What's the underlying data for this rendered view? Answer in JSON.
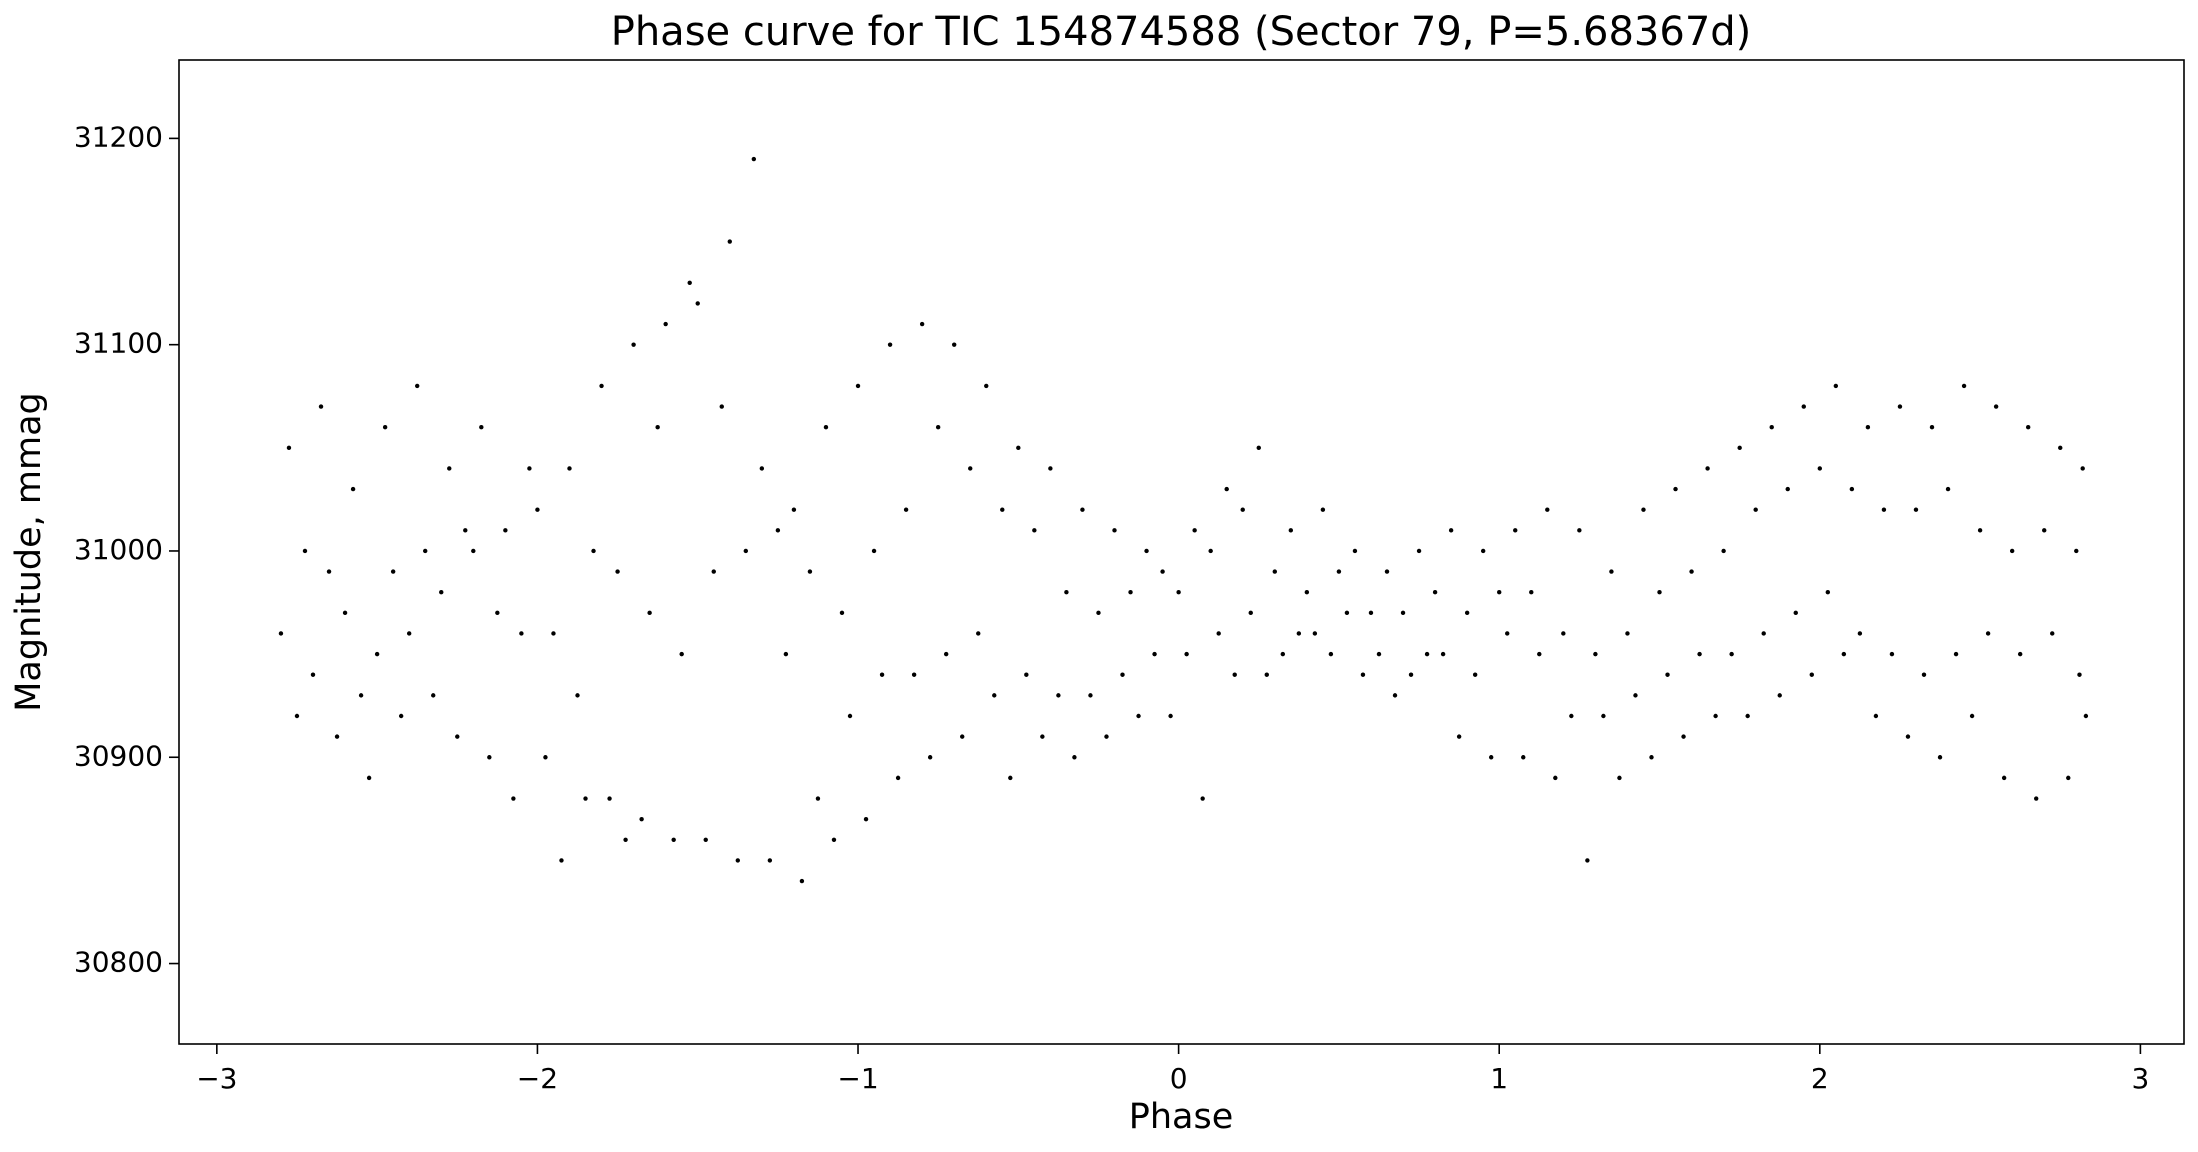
{
  "chart_data": {
    "type": "scatter",
    "title": "Phase curve for TIC 154874588 (Sector 79, P=5.68367d)",
    "x_label": "Phase",
    "y_label": "Magnitude, mmag",
    "xlim": [
      -3.118,
      3.136
    ],
    "ylim": [
      30761,
      31238
    ],
    "xticks": [
      {
        "value": -3,
        "label": "−3"
      },
      {
        "value": -2,
        "label": "−2"
      },
      {
        "value": -1,
        "label": "−1"
      },
      0,
      1,
      2,
      3
    ],
    "yticks": [
      30800,
      30900,
      31000,
      31100,
      31200
    ],
    "color": "#000000",
    "x": [
      -2.8,
      -2.775,
      -2.75,
      -2.725,
      -2.7,
      -2.675,
      -2.65,
      -2.625,
      -2.6,
      -2.575,
      -2.55,
      -2.525,
      -2.5,
      -2.475,
      -2.45,
      -2.425,
      -2.4,
      -2.375,
      -2.35,
      -2.325,
      -2.3,
      -2.275,
      -2.25,
      -2.225,
      -2.2,
      -2.175,
      -2.15,
      -2.125,
      -2.1,
      -2.075,
      -2.05,
      -2.025,
      -2.0,
      -1.975,
      -1.95,
      -1.925,
      -1.9,
      -1.875,
      -1.85,
      -1.825,
      -1.8,
      -1.775,
      -1.75,
      -1.725,
      -1.7,
      -1.675,
      -1.65,
      -1.625,
      -1.6,
      -1.575,
      -1.55,
      -1.525,
      -1.5,
      -1.475,
      -1.45,
      -1.425,
      -1.4,
      -1.375,
      -1.35,
      -1.325,
      -1.3,
      -1.275,
      -1.25,
      -1.225,
      -1.2,
      -1.175,
      -1.15,
      -1.125,
      -1.1,
      -1.075,
      -1.05,
      -1.025,
      -1.0,
      -0.975,
      -0.95,
      -0.925,
      -0.9,
      -0.875,
      -0.85,
      -0.825,
      -0.8,
      -0.775,
      -0.75,
      -0.725,
      -0.7,
      -0.675,
      -0.65,
      -0.625,
      -0.6,
      -0.575,
      -0.55,
      -0.525,
      -0.5,
      -0.475,
      -0.45,
      -0.425,
      -0.4,
      -0.375,
      -0.35,
      -0.325,
      -0.3,
      -0.275,
      -0.25,
      -0.225,
      -0.2,
      -0.175,
      -0.15,
      -0.125,
      -0.1,
      -0.075,
      -0.05,
      -0.025,
      0.0,
      0.025,
      0.05,
      0.075,
      0.1,
      0.125,
      0.15,
      0.175,
      0.2,
      0.225,
      0.25,
      0.275,
      0.3,
      0.325,
      0.35,
      0.375,
      0.4,
      0.425,
      0.45,
      0.475,
      0.5,
      0.525,
      0.55,
      0.575,
      0.6,
      0.625,
      0.65,
      0.675,
      0.7,
      0.725,
      0.75,
      0.775,
      0.8,
      0.825,
      0.85,
      0.875,
      0.9,
      0.925,
      0.95,
      0.975,
      1.0,
      1.025,
      1.05,
      1.075,
      1.1,
      1.125,
      1.15,
      1.175,
      1.2,
      1.225,
      1.25,
      1.275,
      1.3,
      1.325,
      1.35,
      1.375,
      1.4,
      1.425,
      1.45,
      1.475,
      1.5,
      1.525,
      1.55,
      1.575,
      1.6,
      1.625,
      1.65,
      1.675,
      1.7,
      1.725,
      1.75,
      1.775,
      1.8,
      1.825,
      1.85,
      1.875,
      1.9,
      1.925,
      1.95,
      1.975,
      2.0,
      2.025,
      2.05,
      2.075,
      2.1,
      2.125,
      2.15,
      2.175,
      2.2,
      2.225,
      2.25,
      2.275,
      2.3,
      2.325,
      2.35,
      2.375,
      2.4,
      2.425,
      2.45,
      2.475,
      2.5,
      2.525,
      2.55,
      2.575,
      2.6,
      2.625,
      2.65,
      2.675,
      2.7,
      2.725,
      2.75,
      2.775,
      2.8,
      2.81,
      2.82,
      2.83
    ],
    "y": [
      30960,
      31050,
      30920,
      31000,
      30940,
      31070,
      30990,
      30910,
      30970,
      31030,
      30930,
      30890,
      30950,
      31060,
      30990,
      30920,
      30960,
      31080,
      31000,
      30930,
      30980,
      31040,
      30910,
      31010,
      31000,
      31060,
      30900,
      30970,
      31010,
      30880,
      30960,
      31040,
      31020,
      30900,
      30960,
      30850,
      31040,
      30930,
      30880,
      31000,
      31080,
      30880,
      30990,
      30860,
      31100,
      30870,
      30970,
      31060,
      31110,
      30860,
      30950,
      31130,
      31120,
      30860,
      30990,
      31070,
      31150,
      30850,
      31000,
      31190,
      31040,
      30850,
      31010,
      30950,
      31020,
      30840,
      30990,
      30880,
      31060,
      30860,
      30970,
      30920,
      31080,
      30870,
      31000,
      30940,
      31100,
      30890,
      31020,
      30940,
      31110,
      30900,
      31060,
      30950,
      31100,
      30910,
      31040,
      30960,
      31080,
      30930,
      31020,
      30890,
      31050,
      30940,
      31010,
      30910,
      31040,
      30930,
      30980,
      30900,
      31020,
      30930,
      30970,
      30910,
      31010,
      30940,
      30980,
      30920,
      31000,
      30950,
      30990,
      30920,
      30980,
      30950,
      31010,
      30880,
      31000,
      30960,
      31030,
      30940,
      31020,
      30970,
      31050,
      30940,
      30990,
      30950,
      31010,
      30960,
      30980,
      30960,
      31020,
      30950,
      30990,
      30970,
      31000,
      30940,
      30970,
      30950,
      30990,
      30930,
      30970,
      30940,
      31000,
      30950,
      30980,
      30950,
      31010,
      30910,
      30970,
      30940,
      31000,
      30900,
      30980,
      30960,
      31010,
      30900,
      30980,
      30950,
      31020,
      30890,
      30960,
      30920,
      31010,
      30850,
      30950,
      30920,
      30990,
      30890,
      30960,
      30930,
      31020,
      30900,
      30980,
      30940,
      31030,
      30910,
      30990,
      30950,
      31040,
      30920,
      31000,
      30950,
      31050,
      30920,
      31020,
      30960,
      31060,
      30930,
      31030,
      30970,
      31070,
      30940,
      31040,
      30980,
      31080,
      30950,
      31030,
      30960,
      31060,
      30920,
      31020,
      30950,
      31070,
      30910,
      31020,
      30940,
      31060,
      30900,
      31030,
      30950,
      31080,
      30920,
      31010,
      30960,
      31070,
      30890,
      31000,
      30950,
      31060,
      30880,
      31010,
      30960,
      31050,
      30890,
      31000,
      30940,
      31040,
      30920
    ]
  }
}
